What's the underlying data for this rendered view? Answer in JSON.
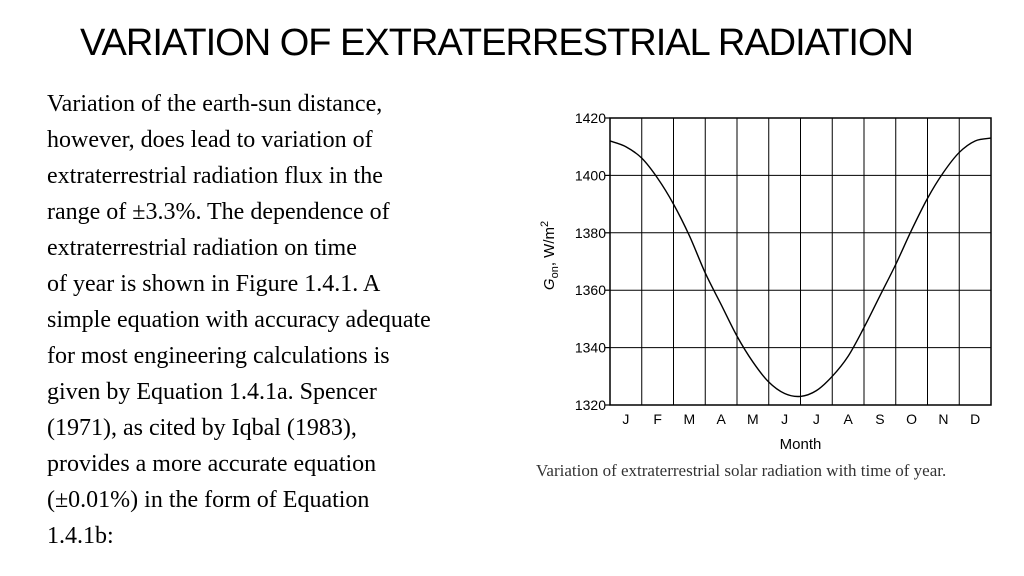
{
  "slide": {
    "title": "VARIATION OF EXTRATERRESTRIAL RADIATION",
    "body_lines": [
      "Variation of the earth-sun distance,",
      "however, does lead to variation of",
      "extraterrestrial radiation flux in the",
      "range of ±3.3%. The dependence of",
      "extraterrestrial radiation on time",
      "of year is shown in Figure 1.4.1. A",
      "simple equation with accuracy adequate",
      "for most engineering calculations is",
      "given by Equation 1.4.1a. Spencer",
      "(1971), as cited by Iqbal (1983),",
      "provides a more accurate equation",
      "(±0.01%) in the form of Equation",
      "1.4.1b:"
    ],
    "caption": "Variation of extraterrestrial solar radiation with time of year."
  },
  "chart_data": {
    "type": "line",
    "xlabel": "Month",
    "ylabel": "G_on , W/m^2",
    "ylabel_parts": {
      "symbol": "G",
      "subscript": "on",
      "unit": ", W/m",
      "superscript": "2"
    },
    "categories": [
      "J",
      "F",
      "M",
      "A",
      "M",
      "J",
      "J",
      "A",
      "S",
      "O",
      "N",
      "D"
    ],
    "ylim": [
      1320,
      1420
    ],
    "yticks": [
      1320,
      1340,
      1360,
      1380,
      1400,
      1420
    ],
    "grid": true,
    "x": [
      0,
      0.5,
      1,
      1.5,
      2,
      2.5,
      3,
      3.5,
      4,
      4.5,
      5,
      5.5,
      6,
      6.5,
      7,
      7.5,
      8,
      8.5,
      9,
      9.5,
      10,
      10.5,
      11,
      11.5,
      12
    ],
    "values": [
      1412,
      1410,
      1406,
      1399,
      1390,
      1379,
      1366,
      1355,
      1344,
      1335,
      1328,
      1324,
      1323,
      1325,
      1330,
      1337,
      1347,
      1358,
      1369,
      1381,
      1392,
      1401,
      1408,
      1412,
      1413
    ],
    "line_color": "#000000"
  }
}
